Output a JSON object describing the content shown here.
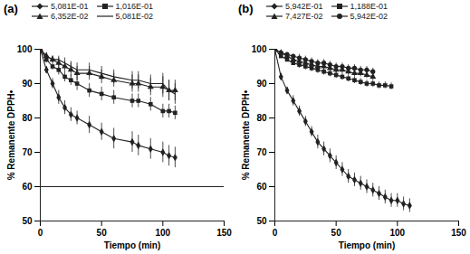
{
  "chart_data": [
    {
      "type": "line",
      "title": "(a)",
      "x_label": "Tiempo (min)",
      "y_label": "% Remanente DPPH•",
      "xlim": [
        0,
        150
      ],
      "xticks": [
        0,
        50,
        100,
        150
      ],
      "ylim": [
        50,
        100
      ],
      "yticks": [
        50,
        60,
        70,
        80,
        90,
        100
      ],
      "hline": 60,
      "series": [
        {
          "name": "5,081E-01",
          "color": "#222222",
          "marker": "diamond",
          "x": [
            0,
            5,
            10,
            15,
            20,
            25,
            30,
            40,
            50,
            60,
            75,
            80,
            90,
            100,
            105,
            110
          ],
          "values": [
            100,
            94,
            90,
            86,
            83,
            81,
            80,
            78,
            76,
            74,
            73,
            72,
            71,
            70,
            69,
            68.5
          ],
          "errors": [
            0,
            1,
            1.5,
            2,
            2,
            2,
            2,
            2.5,
            2.5,
            3,
            3,
            3,
            3,
            3,
            3,
            3
          ]
        },
        {
          "name": "1,016E-01",
          "color": "#222222",
          "marker": "square",
          "x": [
            0,
            5,
            10,
            15,
            20,
            25,
            30,
            40,
            50,
            60,
            75,
            80,
            90,
            100,
            105,
            110
          ],
          "values": [
            100,
            97,
            95,
            94,
            92,
            91,
            90,
            88,
            87,
            86,
            85,
            85,
            84,
            82,
            82,
            81.5
          ],
          "errors": [
            0,
            1,
            1,
            1.5,
            1.5,
            1.5,
            2,
            2,
            2,
            2,
            2,
            2,
            2,
            2,
            2,
            2
          ]
        },
        {
          "name": "6,352E-02",
          "color": "#222222",
          "marker": "triangle",
          "x": [
            0,
            5,
            10,
            15,
            20,
            25,
            30,
            40,
            50,
            60,
            75,
            80,
            90,
            100,
            105,
            110
          ],
          "values": [
            100,
            98,
            97,
            96,
            95,
            94,
            93,
            93,
            92,
            91,
            90,
            90,
            89,
            89,
            88,
            88
          ],
          "errors": [
            0,
            1,
            1,
            1.5,
            1.5,
            2,
            2,
            2,
            2,
            2,
            2.5,
            2.5,
            2.5,
            3,
            3,
            3
          ]
        },
        {
          "name": "5,081E-02",
          "color": "#222222",
          "marker": "none",
          "x": [
            0,
            5,
            10,
            15,
            20,
            25,
            30,
            40,
            50,
            60,
            75,
            80,
            90,
            100,
            105,
            110
          ],
          "values": [
            100,
            98,
            97,
            97,
            96,
            95,
            94,
            94,
            93,
            92,
            91,
            91,
            90,
            90,
            88,
            87
          ],
          "errors": [
            0,
            1,
            1,
            1,
            1.5,
            1.5,
            2,
            2,
            2,
            2,
            2.5,
            2.5,
            2.5,
            3,
            3,
            3
          ]
        }
      ]
    },
    {
      "type": "line",
      "title": "(b)",
      "x_label": "Tiempo (min)",
      "y_label": "% Remanente DPPH•",
      "xlim": [
        0,
        150
      ],
      "xticks": [
        0,
        50,
        100,
        150
      ],
      "ylim": [
        50,
        100
      ],
      "yticks": [
        50,
        60,
        70,
        80,
        90,
        100
      ],
      "series": [
        {
          "name": "5,942E-01",
          "color": "#222222",
          "marker": "diamond",
          "x": [
            0,
            5,
            10,
            15,
            20,
            25,
            30,
            35,
            40,
            45,
            50,
            55,
            60,
            65,
            70,
            75,
            80,
            85,
            90,
            95,
            100,
            105,
            110
          ],
          "values": [
            100,
            92,
            88,
            85,
            82,
            79,
            76,
            73,
            71,
            69,
            67,
            65,
            63,
            62,
            61,
            60,
            59,
            58,
            57,
            56,
            56,
            55,
            54.5
          ],
          "errors": [
            0,
            1,
            1,
            1.5,
            1.5,
            1.5,
            1.5,
            2,
            2,
            2,
            2,
            2,
            2,
            2,
            2,
            2,
            2,
            2,
            2,
            2,
            2,
            2,
            2
          ]
        },
        {
          "name": "1,188E-01",
          "color": "#222222",
          "marker": "square",
          "x": [
            0,
            5,
            10,
            15,
            20,
            25,
            30,
            35,
            40,
            45,
            50,
            55,
            60,
            65,
            70,
            75,
            80,
            85,
            90,
            95
          ],
          "values": [
            100,
            98,
            97,
            96,
            95.5,
            95,
            94.5,
            94,
            93.5,
            93,
            92.5,
            92,
            91.5,
            91,
            90.5,
            90,
            90,
            89.5,
            89.5,
            89.2
          ],
          "errors": [
            0,
            0.5,
            0.5,
            0.5,
            1,
            1,
            1,
            1,
            1,
            1,
            1,
            1,
            1,
            1,
            1,
            1,
            1,
            1,
            1,
            1
          ]
        },
        {
          "name": "7,427E-02",
          "color": "#222222",
          "marker": "triangle",
          "x": [
            0,
            5,
            10,
            15,
            20,
            25,
            30,
            35,
            40,
            45,
            50,
            55,
            60,
            65,
            70,
            75,
            80
          ],
          "values": [
            100,
            99,
            98,
            97,
            96.5,
            96,
            95.5,
            95,
            95,
            94.5,
            94,
            94,
            93.5,
            93,
            93,
            92.5,
            92
          ],
          "errors": [
            0,
            0.5,
            0.5,
            1,
            1,
            1,
            1,
            1,
            1,
            1,
            1,
            1,
            1,
            1,
            1,
            1,
            1
          ]
        },
        {
          "name": "5,942E-02",
          "color": "#222222",
          "marker": "circle",
          "x": [
            0,
            5,
            10,
            15,
            20,
            25,
            30,
            35,
            40,
            45,
            50,
            55,
            60,
            65,
            70,
            75,
            80
          ],
          "values": [
            100,
            99,
            98.5,
            98,
            97.5,
            97,
            96.5,
            96,
            96,
            95.5,
            95,
            95,
            94.5,
            94.5,
            94,
            94,
            93.5
          ],
          "errors": [
            0,
            0.5,
            0.5,
            0.5,
            1,
            1,
            1,
            1,
            1,
            1,
            1,
            1,
            1,
            1,
            1,
            1,
            1
          ]
        }
      ]
    }
  ]
}
